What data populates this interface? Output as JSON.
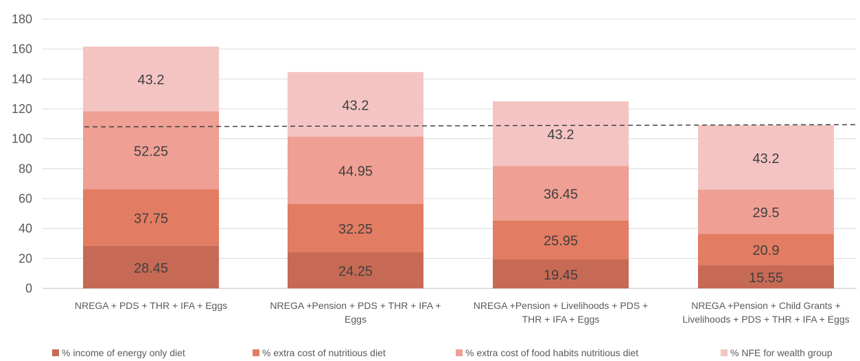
{
  "chart_data": {
    "type": "bar",
    "stacked": true,
    "categories": [
      "NREGA + PDS + THR + IFA + Eggs",
      "NREGA +Pension + PDS + THR + IFA + Eggs",
      "NREGA +Pension + Livelihoods + PDS + THR + IFA + Eggs",
      "NREGA +Pension + Child Grants + Livelihoods + PDS + THR + IFA + Eggs"
    ],
    "category_lines": [
      [
        "NREGA + PDS + THR + IFA + Eggs"
      ],
      [
        "NREGA +Pension + PDS + THR + IFA +",
        "Eggs"
      ],
      [
        "NREGA +Pension + Livelihoods + PDS +",
        "THR + IFA + Eggs"
      ],
      [
        "NREGA +Pension + Child Grants +",
        "Livelihoods + PDS + THR + IFA + Eggs"
      ]
    ],
    "series": [
      {
        "name": "% income of energy only diet",
        "values": [
          28.45,
          24.25,
          19.45,
          15.55
        ],
        "labels": [
          "28.45",
          "24.25",
          "19.45",
          "15.55"
        ],
        "color": "#c76a55"
      },
      {
        "name": "% extra cost of nutritious diet",
        "values": [
          37.75,
          32.25,
          25.95,
          20.9
        ],
        "labels": [
          "37.75",
          "32.25",
          "25.95",
          "20.9"
        ],
        "color": "#e27c62"
      },
      {
        "name": "% extra cost of food habits nutritious diet",
        "values": [
          52.25,
          44.95,
          36.45,
          29.5
        ],
        "labels": [
          "52.25",
          "44.95",
          "36.45",
          "29.5"
        ],
        "color": "#ef9f93"
      },
      {
        "name": "% NFE for wealth group",
        "values": [
          43.2,
          43.2,
          43.2,
          43.2
        ],
        "labels": [
          "43.2",
          "43.2",
          "43.2",
          "43.2"
        ],
        "color": "#f4c4c3"
      }
    ],
    "reference_line": {
      "style": "dashed",
      "color": "#404040",
      "y_start": 108,
      "y_end": 109.5
    },
    "yticks": [
      "0",
      "20",
      "40",
      "60",
      "80",
      "100",
      "120",
      "140",
      "160",
      "180"
    ],
    "ylim": [
      0,
      180
    ],
    "grid": true,
    "legend": "bottom",
    "title": "",
    "xlabel": "",
    "ylabel": ""
  }
}
